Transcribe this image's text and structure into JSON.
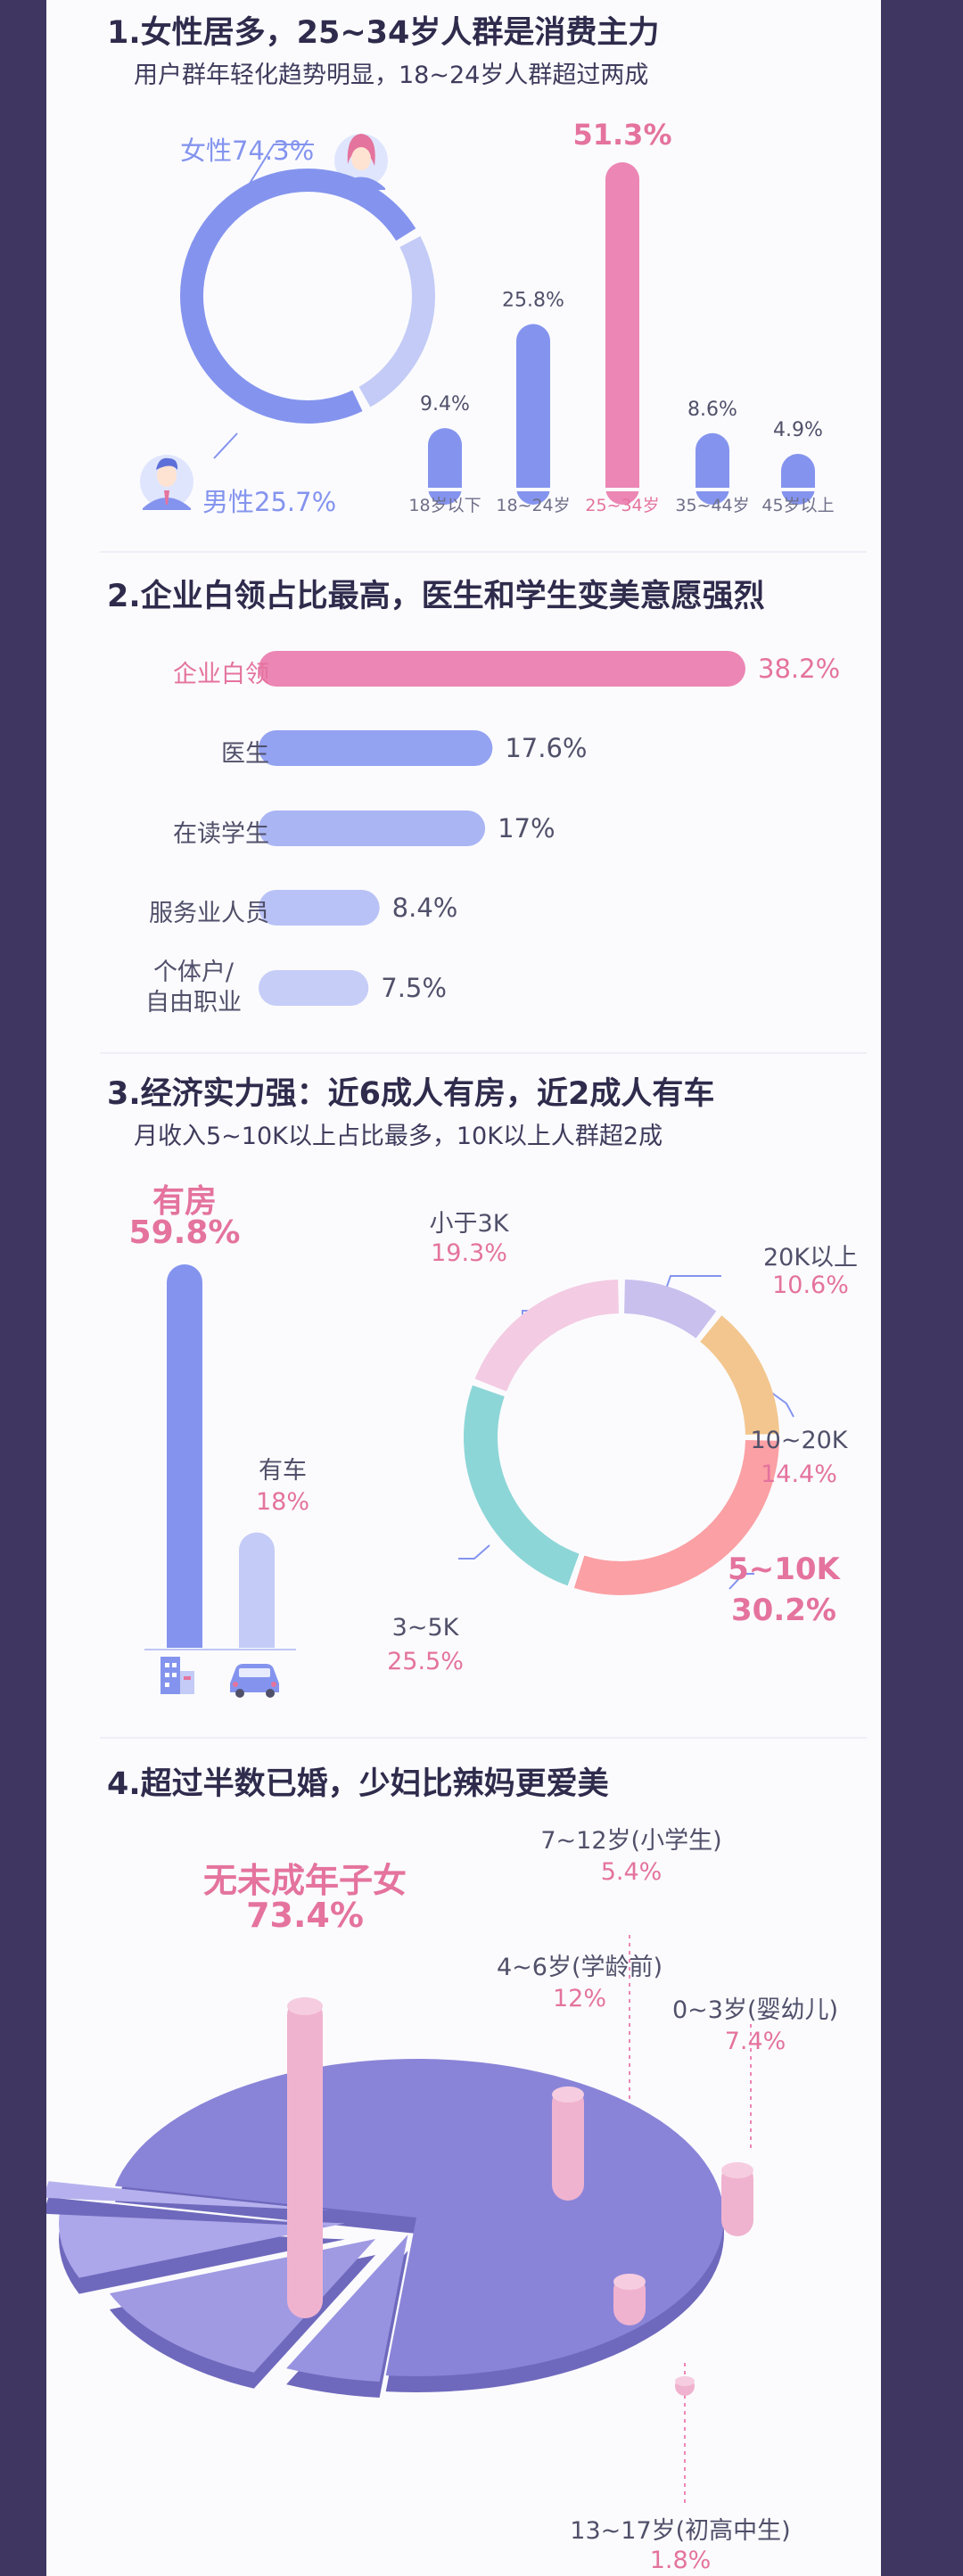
{
  "section1": {
    "title": "1.女性居多，25~34岁人群是消费主力",
    "subtitle": "用户群年轻化趋势明显，18~24岁人群超过两成",
    "gender": {
      "female_label": "女性74.3%",
      "male_label": "男性25.7%",
      "female_icon": "woman-avatar-icon",
      "male_icon": "man-avatar-icon"
    }
  },
  "section2": {
    "title": "2.企业白领占比最高，医生和学生变美意愿强烈",
    "occupations": [
      {
        "label": "企业白领",
        "value": 38.2,
        "value_label": "38.2%"
      },
      {
        "label": "医生",
        "value": 17.6,
        "value_label": "17.6%"
      },
      {
        "label": "在读学生",
        "value": 17,
        "value_label": "17%"
      },
      {
        "label": "服务业人员",
        "value": 8.4,
        "value_label": "8.4%"
      },
      {
        "label_line1": "个体户/",
        "label_line2": "自由职业",
        "value": 7.5,
        "value_label": "7.5%"
      }
    ]
  },
  "section3": {
    "title": "3.经济实力强：近6成人有房，近2成人有车",
    "subtitle": "月收入5~10K以上占比最多，10K以上人群超2成",
    "assets": {
      "house_label": "有房",
      "house_value_label": "59.8%",
      "house_value": 59.8,
      "car_label": "有车",
      "car_value_label": "18%",
      "car_value": 18,
      "house_icon": "building-icon",
      "car_icon": "car-icon"
    },
    "income": [
      {
        "label": "20K以上",
        "value_label": "10.6%"
      },
      {
        "label": "10~20K",
        "value_label": "14.4%"
      },
      {
        "label": "5~10K",
        "value_label": "30.2%"
      },
      {
        "label": "3~5K",
        "value_label": "25.5%"
      },
      {
        "label": "小于3K",
        "value_label": "19.3%"
      }
    ]
  },
  "section4": {
    "title": "4.超过半数已婚，少妇比辣妈更爱美",
    "children": [
      {
        "label": "无未成年子女",
        "value_label": "73.4%"
      },
      {
        "label": "4~6岁(学龄前)",
        "value_label": "12%"
      },
      {
        "label": "0~3岁(婴幼儿)",
        "value_label": "7.4%"
      },
      {
        "label": "7~12岁(小学生)",
        "value_label": "5.4%"
      },
      {
        "label": "13~17岁(初高中生)",
        "value_label": "1.8%"
      }
    ]
  },
  "colors": {
    "blue": "#8494ee",
    "light_blue": "#c3cbf6",
    "pink": "#ec86b4",
    "lavender": "#c9c0ee",
    "orange": "#f2c68e",
    "salmon": "#fba0a4",
    "teal": "#8dd6d7",
    "light_pink": "#f3cbe2",
    "pie_purple": "#8f89db"
  },
  "chart_data": [
    {
      "type": "pie",
      "title": "",
      "categories": [
        "女性",
        "男性"
      ],
      "values": [
        74.3,
        25.7
      ]
    },
    {
      "type": "bar",
      "categories": [
        "18岁以下",
        "18~24岁",
        "25~34岁",
        "35~44岁",
        "45岁以上"
      ],
      "values": [
        9.4,
        25.8,
        51.3,
        8.6,
        4.9
      ],
      "value_labels": [
        "9.4%",
        "25.8%",
        "51.3%",
        "8.6%",
        "4.9%"
      ],
      "highlight": "25~34岁"
    },
    {
      "type": "bar",
      "orientation": "horizontal",
      "categories": [
        "企业白领",
        "医生",
        "在读学生",
        "服务业人员",
        "个体户/自由职业"
      ],
      "values": [
        38.2,
        17.6,
        17,
        8.4,
        7.5
      ]
    },
    {
      "type": "bar",
      "categories": [
        "有房",
        "有车"
      ],
      "values": [
        59.8,
        18
      ]
    },
    {
      "type": "pie",
      "categories": [
        "20K以上",
        "10~20K",
        "5~10K",
        "3~5K",
        "小于3K"
      ],
      "values": [
        10.6,
        14.4,
        30.2,
        25.5,
        19.3
      ]
    },
    {
      "type": "pie",
      "categories": [
        "无未成年子女",
        "4~6岁(学龄前)",
        "0~3岁(婴幼儿)",
        "7~12岁(小学生)",
        "13~17岁(初高中生)"
      ],
      "values": [
        73.4,
        12,
        7.4,
        5.4,
        1.8
      ]
    }
  ]
}
